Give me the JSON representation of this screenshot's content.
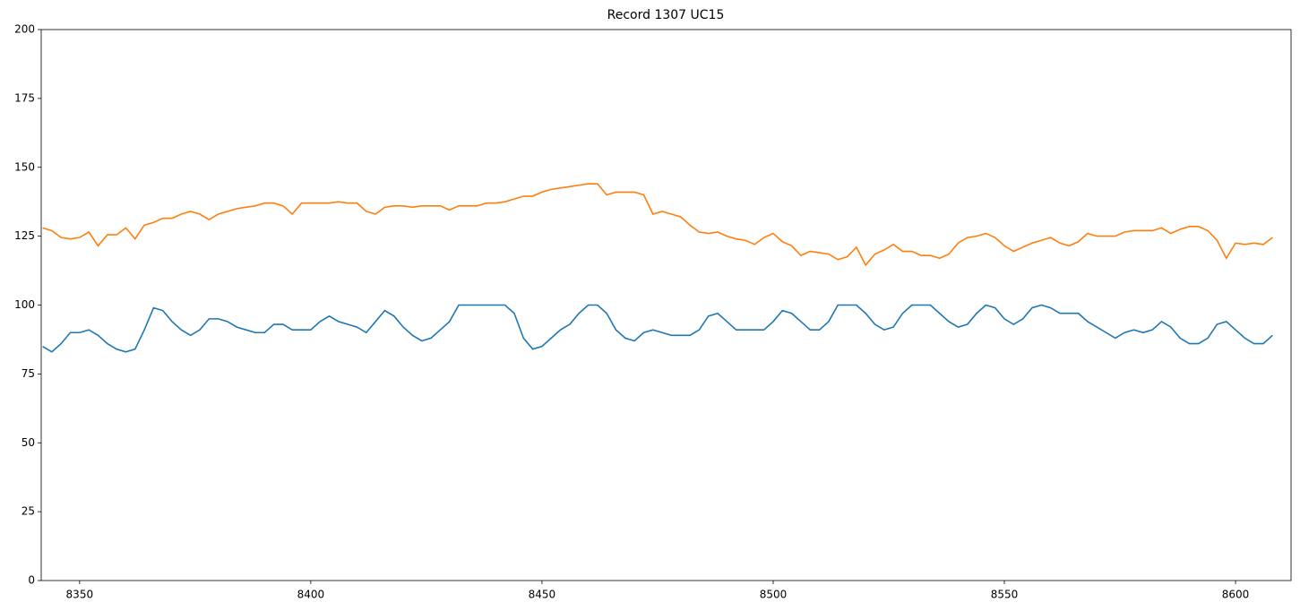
{
  "chart_data": {
    "type": "line",
    "title": "Record 1307 UC15",
    "x": [
      8342,
      8344,
      8346,
      8348,
      8350,
      8352,
      8354,
      8356,
      8358,
      8360,
      8362,
      8364,
      8366,
      8368,
      8370,
      8372,
      8374,
      8376,
      8378,
      8380,
      8382,
      8384,
      8386,
      8388,
      8390,
      8392,
      8394,
      8396,
      8398,
      8400,
      8402,
      8404,
      8406,
      8408,
      8410,
      8412,
      8414,
      8416,
      8418,
      8420,
      8422,
      8424,
      8426,
      8428,
      8430,
      8432,
      8434,
      8436,
      8438,
      8440,
      8442,
      8444,
      8446,
      8448,
      8450,
      8452,
      8454,
      8456,
      8458,
      8460,
      8462,
      8464,
      8466,
      8468,
      8470,
      8472,
      8474,
      8476,
      8478,
      8480,
      8482,
      8484,
      8486,
      8488,
      8490,
      8492,
      8494,
      8496,
      8498,
      8500,
      8502,
      8504,
      8506,
      8508,
      8510,
      8512,
      8514,
      8516,
      8518,
      8520,
      8522,
      8524,
      8526,
      8528,
      8530,
      8532,
      8534,
      8536,
      8538,
      8540,
      8542,
      8544,
      8546,
      8548,
      8550,
      8552,
      8554,
      8556,
      8558,
      8560,
      8562,
      8564,
      8566,
      8568,
      8570,
      8572,
      8574,
      8576,
      8578,
      8580,
      8582,
      8584,
      8586,
      8588,
      8590,
      8592,
      8594,
      8596,
      8598,
      8600,
      8602,
      8604,
      8606,
      8608
    ],
    "series": [
      {
        "color": "#1f77b4",
        "values": [
          85,
          83,
          86,
          90,
          90,
          91,
          89,
          86,
          84,
          83,
          84,
          91,
          99,
          98,
          94,
          91,
          89,
          91,
          95,
          95,
          94,
          92,
          91,
          90,
          90,
          93,
          93,
          91,
          91,
          91,
          94,
          96,
          94,
          93,
          92,
          90,
          94,
          98,
          96,
          92,
          89,
          87,
          88,
          91,
          94,
          100,
          100,
          100,
          100,
          100,
          100,
          97,
          88,
          84,
          85,
          88,
          91,
          93,
          97,
          100,
          100,
          97,
          91,
          88,
          87,
          90,
          91,
          90,
          89,
          89,
          89,
          91,
          96,
          97,
          94,
          91,
          91,
          91,
          91,
          94,
          98,
          97,
          94,
          91,
          91,
          94,
          100,
          100,
          100,
          97,
          93,
          91,
          92,
          97,
          100,
          100,
          100,
          97,
          94,
          92,
          93,
          97,
          100,
          99,
          95,
          93,
          95,
          99,
          100,
          99,
          97,
          97,
          97,
          94,
          92,
          90,
          88,
          90,
          91,
          90,
          91,
          94,
          92,
          88,
          86,
          86,
          88,
          93,
          94,
          91,
          88,
          86,
          86,
          89
        ]
      },
      {
        "color": "#ff7f0e",
        "values": [
          128,
          127,
          124.5,
          124,
          124.5,
          126.5,
          121.5,
          125.5,
          125.5,
          128,
          124,
          129,
          130,
          131.5,
          131.5,
          133,
          134,
          133,
          131,
          133,
          134,
          135,
          135.5,
          136,
          137,
          137,
          136,
          133,
          137,
          137,
          137,
          137,
          137.5,
          137,
          137,
          134,
          133,
          135.5,
          136,
          136,
          135.5,
          136,
          136,
          136,
          134.5,
          136,
          136,
          136,
          137,
          137,
          137.5,
          138.5,
          139.5,
          139.5,
          141,
          142,
          142.5,
          143,
          143.5,
          144,
          144,
          140,
          141,
          141,
          141,
          140,
          133,
          134,
          133,
          132,
          129,
          126.5,
          126,
          126.5,
          125,
          124,
          123.5,
          122,
          124.5,
          126,
          123,
          121.5,
          118,
          119.5,
          119,
          118.5,
          116.5,
          117.5,
          121,
          114.5,
          118.5,
          120,
          122,
          119.5,
          119.5,
          118,
          118,
          117,
          118.5,
          122.5,
          124.5,
          125,
          126,
          124.5,
          121.5,
          119.5,
          121,
          122.5,
          123.5,
          124.5,
          122.5,
          121.5,
          123,
          126,
          125,
          125,
          125,
          126.5,
          127,
          127,
          127,
          128,
          126,
          127.5,
          128.5,
          128.5,
          127,
          123.5,
          117,
          122.5,
          122,
          122.5,
          122,
          124.5
        ]
      }
    ],
    "xlim": [
      8341.7,
      8612
    ],
    "xticks": [
      8350,
      8400,
      8450,
      8500,
      8550,
      8600
    ],
    "ylim": [
      0,
      200
    ],
    "yticks": [
      0,
      25,
      50,
      75,
      100,
      125,
      150,
      175,
      200
    ]
  }
}
